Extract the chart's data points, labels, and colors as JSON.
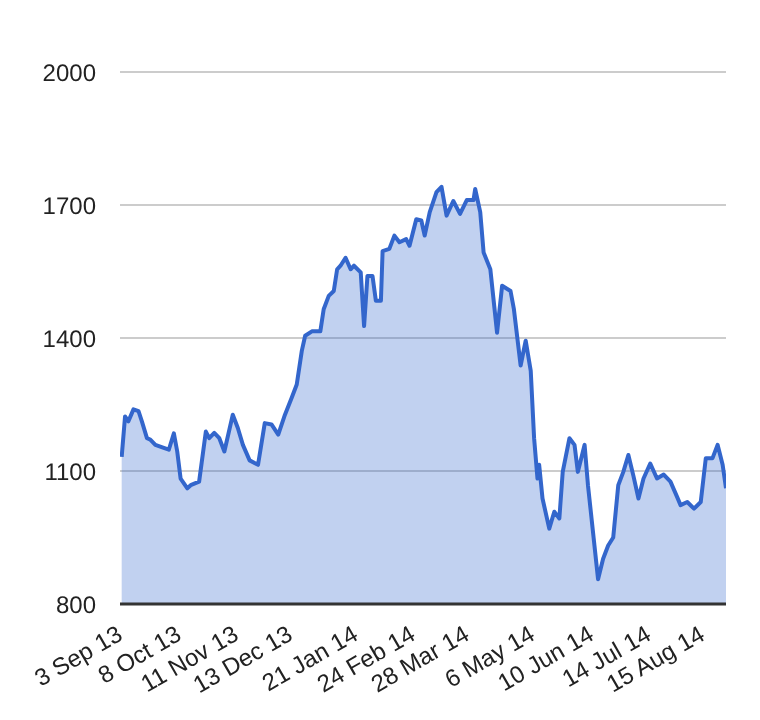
{
  "chart_data": {
    "type": "area",
    "x": [
      "2013-09-04",
      "2013-09-06",
      "2013-09-08",
      "2013-09-11",
      "2013-09-14",
      "2013-09-16",
      "2013-09-19",
      "2013-09-21",
      "2013-09-24",
      "2013-09-29",
      "2013-10-02",
      "2013-10-05",
      "2013-10-07",
      "2013-10-09",
      "2013-10-13",
      "2013-10-15",
      "2013-10-20",
      "2013-10-24",
      "2013-10-26",
      "2013-10-29",
      "2013-11-01",
      "2013-11-04",
      "2013-11-09",
      "2013-11-12",
      "2013-11-15",
      "2013-11-19",
      "2013-11-24",
      "2013-11-28",
      "2013-12-02",
      "2013-12-06",
      "2013-12-10",
      "2013-12-14",
      "2013-12-17",
      "2013-12-20",
      "2013-12-22",
      "2013-12-26",
      "2013-12-31",
      "2014-01-02",
      "2014-01-05",
      "2014-01-08",
      "2014-01-10",
      "2014-01-12",
      "2014-01-15",
      "2014-01-18",
      "2014-01-20",
      "2014-01-24",
      "2014-01-26",
      "2014-01-28",
      "2014-01-31",
      "2014-02-02",
      "2014-02-05",
      "2014-02-06",
      "2014-02-10",
      "2014-02-13",
      "2014-02-16",
      "2014-02-20",
      "2014-02-22",
      "2014-02-26",
      "2014-03-01",
      "2014-03-03",
      "2014-03-06",
      "2014-03-10",
      "2014-03-13",
      "2014-03-16",
      "2014-03-20",
      "2014-03-24",
      "2014-03-28",
      "2014-04-01",
      "2014-04-02",
      "2014-04-05",
      "2014-04-07",
      "2014-04-11",
      "2014-04-15",
      "2014-04-18",
      "2014-04-23",
      "2014-04-25",
      "2014-04-29",
      "2014-05-02",
      "2014-05-05",
      "2014-05-07",
      "2014-05-09",
      "2014-05-10",
      "2014-05-12",
      "2014-05-16",
      "2014-05-19",
      "2014-05-22",
      "2014-05-24",
      "2014-05-28",
      "2014-05-31",
      "2014-06-02",
      "2014-06-06",
      "2014-06-08",
      "2014-06-11",
      "2014-06-14",
      "2014-06-17",
      "2014-06-20",
      "2014-06-23",
      "2014-06-26",
      "2014-06-29",
      "2014-07-02",
      "2014-07-05",
      "2014-07-08",
      "2014-07-11",
      "2014-07-15",
      "2014-07-19",
      "2014-07-23",
      "2014-07-27",
      "2014-07-31",
      "2014-08-02",
      "2014-08-06",
      "2014-08-10",
      "2014-08-14",
      "2014-08-17",
      "2014-08-21",
      "2014-08-24",
      "2014-08-27",
      "2014-08-29"
    ],
    "series": [
      {
        "color": "#3366cc",
        "values": [
          1132,
          1223,
          1212,
          1239,
          1235,
          1212,
          1174,
          1171,
          1159,
          1152,
          1148,
          1185,
          1144,
          1083,
          1061,
          1068,
          1076,
          1189,
          1174,
          1186,
          1174,
          1144,
          1227,
          1197,
          1159,
          1124,
          1114,
          1208,
          1205,
          1182,
          1227,
          1265,
          1295,
          1371,
          1405,
          1415,
          1415,
          1465,
          1495,
          1506,
          1555,
          1563,
          1581,
          1555,
          1563,
          1548,
          1427,
          1540,
          1540,
          1484,
          1484,
          1596,
          1601,
          1631,
          1616,
          1623,
          1608,
          1668,
          1665,
          1631,
          1684,
          1729,
          1741,
          1676,
          1709,
          1680,
          1711,
          1711,
          1736,
          1684,
          1593,
          1555,
          1412,
          1518,
          1506,
          1465,
          1338,
          1394,
          1326,
          1174,
          1083,
          1114,
          1038,
          970,
          1008,
          993,
          1098,
          1174,
          1159,
          1098,
          1159,
          1068,
          962,
          856,
          902,
          932,
          950,
          1068,
          1098,
          1136,
          1089,
          1038,
          1083,
          1117,
          1083,
          1092,
          1076,
          1041,
          1023,
          1030,
          1015,
          1030,
          1129,
          1129,
          1159,
          1114,
          1061
        ]
      }
    ],
    "xlim": [
      "2013-09-03",
      "2014-08-29"
    ],
    "xticks": [
      {
        "value": "2013-09-03",
        "label": "3 Sep 13"
      },
      {
        "value": "2013-10-08",
        "label": "8 Oct 13"
      },
      {
        "value": "2013-11-11",
        "label": "11 Nov 13"
      },
      {
        "value": "2013-12-13",
        "label": "13 Dec 13"
      },
      {
        "value": "2014-01-21",
        "label": "21 Jan 14"
      },
      {
        "value": "2014-02-24",
        "label": "24 Feb 14"
      },
      {
        "value": "2014-03-28",
        "label": "28 Mar 14"
      },
      {
        "value": "2014-05-06",
        "label": "6 May 14"
      },
      {
        "value": "2014-06-10",
        "label": "10 Jun 14"
      },
      {
        "value": "2014-07-14",
        "label": "14 Jul 14"
      },
      {
        "value": "2014-08-15",
        "label": "15 Aug 14"
      }
    ],
    "ylim": [
      800,
      2000
    ],
    "yticks": [
      800,
      1100,
      1400,
      1700,
      2000
    ],
    "grid": "y",
    "legend": false,
    "marker": "none",
    "line_style": "solid"
  }
}
